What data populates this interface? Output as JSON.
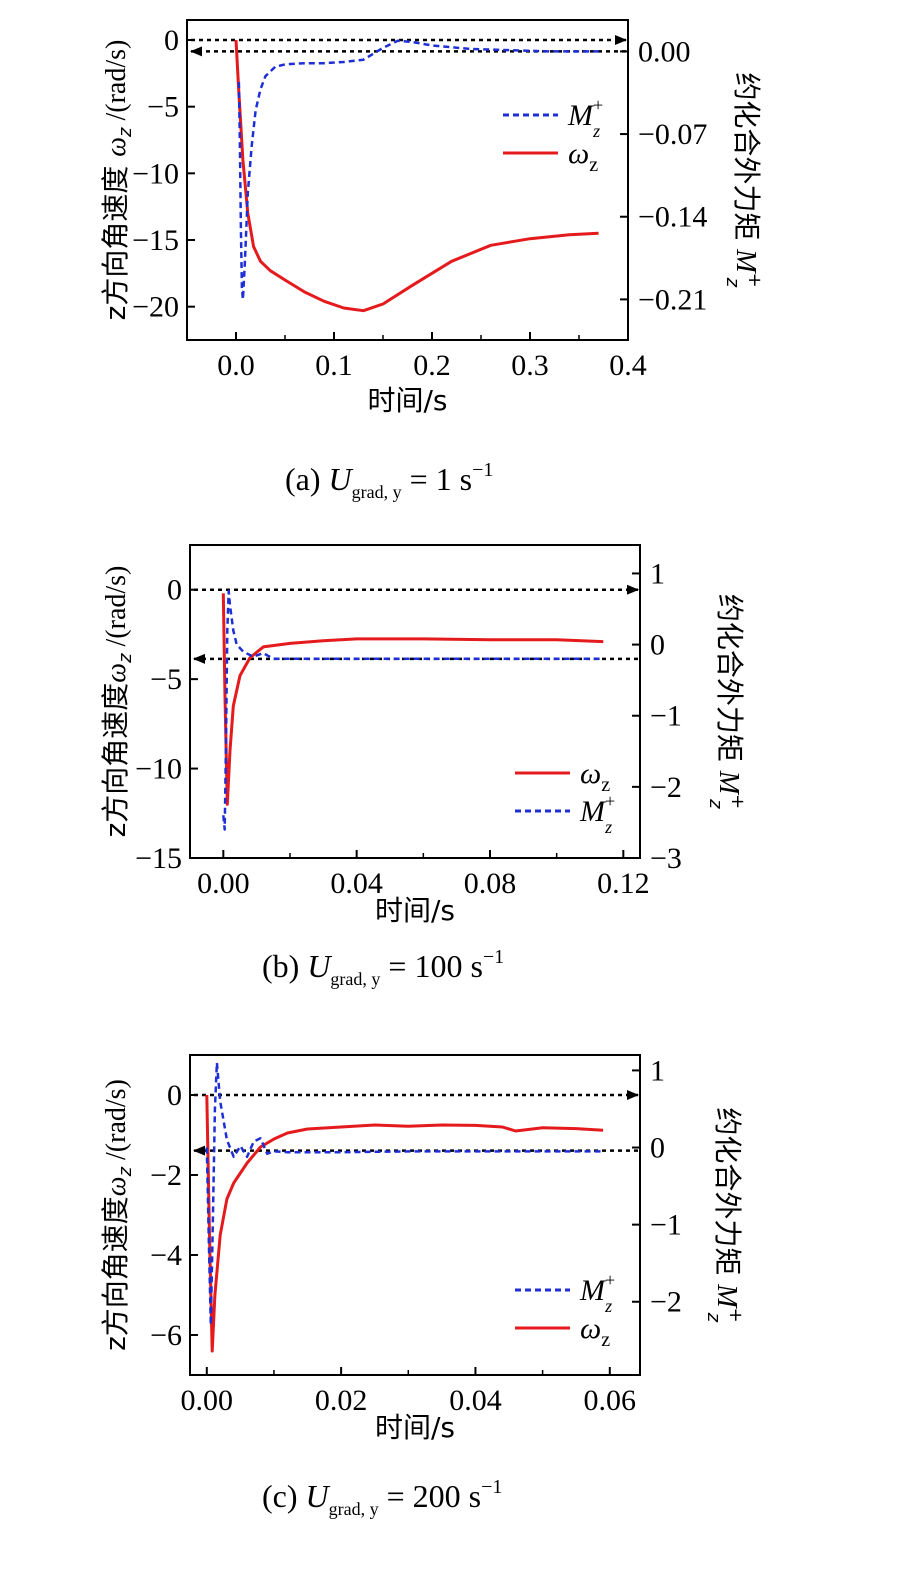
{
  "colors": {
    "omega": "#e41a1c",
    "moment": "#1f2fd6",
    "arrow": "#000000"
  },
  "chart_data": [
    {
      "type": "line",
      "caption": {
        "prefix": "(a)",
        "sub": "grad, y",
        "rhs": "= 1 s",
        "exp": "−1"
      },
      "xlabel": "时间/s",
      "ylabel_left": {
        "pre": "z方向角速度 ",
        "sym": "ω",
        "sub": "z",
        "unit": " /(rad/s)"
      },
      "ylabel_right": {
        "text": "约化合外力矩 ",
        "sym": "M",
        "sup": "+",
        "sub": "z"
      },
      "xlim": [
        -0.05,
        0.4
      ],
      "ylim_left": [
        -22.5,
        1.5
      ],
      "ylim_right": [
        -0.2444,
        0.0266
      ],
      "xticks": [
        0.0,
        0.1,
        0.2,
        0.3,
        0.4
      ],
      "xtick_labels": [
        "0.0",
        "0.1",
        "0.2",
        "0.3",
        "0.4"
      ],
      "yticks_left": [
        0,
        -5,
        -10,
        -15,
        -20
      ],
      "ytick_labels_left": [
        "0",
        "−5",
        "−10",
        "−15",
        "−20"
      ],
      "yticks_right": [
        0.0,
        -0.07,
        -0.14,
        -0.21
      ],
      "ytick_labels_right": [
        "0.00",
        "−0.07",
        "−0.14",
        "−0.21"
      ],
      "legend": {
        "position": "upper-right",
        "order": [
          "moment",
          "omega"
        ]
      },
      "legend_labels": {
        "omega": {
          "sym": "ω",
          "sub": "z"
        },
        "moment": {
          "sym": "M",
          "sup": "+",
          "sub": "z"
        }
      },
      "arrows": [
        {
          "axis": "left",
          "y": 0,
          "direction": "right"
        },
        {
          "axis": "right",
          "y": 0,
          "direction": "left"
        }
      ],
      "series": [
        {
          "name": "ω_z",
          "axis": "left",
          "style": "solid",
          "x": [
            0.0,
            0.003,
            0.007,
            0.012,
            0.018,
            0.025,
            0.035,
            0.05,
            0.07,
            0.09,
            0.11,
            0.13,
            0.15,
            0.18,
            0.22,
            0.26,
            0.3,
            0.34,
            0.37
          ],
          "y": [
            0,
            -4,
            -9,
            -13,
            -15.5,
            -16.6,
            -17.3,
            -18,
            -18.9,
            -19.6,
            -20.1,
            -20.3,
            -19.8,
            -18.4,
            -16.6,
            -15.4,
            -14.9,
            -14.6,
            -14.5
          ]
        },
        {
          "name": "M_z^+",
          "axis": "right",
          "style": "dashed",
          "x": [
            0.003,
            0.004,
            0.005,
            0.006,
            0.007,
            0.009,
            0.012,
            0.016,
            0.02,
            0.025,
            0.03,
            0.04,
            0.05,
            0.07,
            0.09,
            0.11,
            0.13,
            0.15,
            0.165,
            0.18,
            0.2,
            0.24,
            0.28,
            0.32,
            0.37
          ],
          "y": [
            -0.026,
            -0.08,
            -0.15,
            -0.2,
            -0.21,
            -0.18,
            -0.12,
            -0.08,
            -0.05,
            -0.032,
            -0.021,
            -0.013,
            -0.011,
            -0.01,
            -0.01,
            -0.009,
            -0.007,
            0.003,
            0.009,
            0.008,
            0.005,
            0.002,
            0.001,
            0.0,
            0.0
          ]
        }
      ]
    },
    {
      "type": "line",
      "caption": {
        "prefix": "(b)",
        "sub": "grad, y",
        "rhs": "= 100 s",
        "exp": "−1"
      },
      "xlabel": "时间/s",
      "ylabel_left": {
        "pre": "z方向角速度",
        "sym": "ω",
        "sub": "z",
        "unit": " /(rad/s)"
      },
      "ylabel_right": {
        "text": "约化合外力矩 ",
        "sym": "M",
        "sup": "+",
        "sub": "z"
      },
      "xlim": [
        -0.01,
        0.125
      ],
      "ylim_left": [
        -15,
        2.5
      ],
      "ylim_right": [
        -3,
        1.4
      ],
      "xticks": [
        0.0,
        0.04,
        0.08,
        0.12
      ],
      "xtick_labels": [
        "0.00",
        "0.04",
        "0.08",
        "0.12"
      ],
      "yticks_left": [
        0,
        -5,
        -10,
        -15
      ],
      "ytick_labels_left": [
        "0",
        "−5",
        "−10",
        "−15"
      ],
      "yticks_right": [
        1,
        0,
        -1,
        -2,
        -3
      ],
      "ytick_labels_right": [
        "1",
        "0",
        "−1",
        "−2",
        "−3"
      ],
      "legend": {
        "position": "lower-right",
        "order": [
          "omega",
          "moment"
        ]
      },
      "legend_labels": {
        "omega": {
          "sym": "ω",
          "sub": "z"
        },
        "moment": {
          "sym": "M",
          "sup": "+",
          "sub": "z"
        }
      },
      "arrows": [
        {
          "axis": "left",
          "y": 0,
          "direction": "right"
        },
        {
          "axis": "right",
          "y": -0.2,
          "direction": "left"
        }
      ],
      "series": [
        {
          "name": "ω_z",
          "axis": "left",
          "style": "solid",
          "x": [
            0.0,
            0.0005,
            0.0012,
            0.002,
            0.003,
            0.005,
            0.008,
            0.012,
            0.02,
            0.03,
            0.04,
            0.06,
            0.08,
            0.1,
            0.114
          ],
          "y": [
            -0.2,
            -6,
            -12,
            -9,
            -6.5,
            -4.8,
            -3.8,
            -3.2,
            -3,
            -2.85,
            -2.75,
            -2.75,
            -2.8,
            -2.8,
            -2.9
          ]
        },
        {
          "name": "M_z^+",
          "axis": "right",
          "style": "dashed",
          "x": [
            0.0,
            0.0004,
            0.0008,
            0.0012,
            0.0016,
            0.002,
            0.003,
            0.004,
            0.006,
            0.009,
            0.012,
            0.015,
            0.02,
            0.04,
            0.06,
            0.08,
            0.1,
            0.114
          ],
          "y": [
            -2.4,
            -2.6,
            -1.4,
            0.2,
            0.75,
            0.55,
            0.2,
            0.0,
            -0.1,
            -0.17,
            -0.12,
            -0.2,
            -0.2,
            -0.2,
            -0.2,
            -0.2,
            -0.2,
            -0.2
          ]
        }
      ]
    },
    {
      "type": "line",
      "caption": {
        "prefix": "(c)",
        "sub": "grad, y",
        "rhs": "= 200 s",
        "exp": "−1"
      },
      "xlabel": "时间/s",
      "ylabel_left": {
        "pre": "z方向角速度",
        "sym": "ω",
        "sub": "z",
        "unit": " /(rad/s)"
      },
      "ylabel_right": {
        "text": "约化合外力矩 ",
        "sym": "M",
        "sup": "+",
        "sub": "z"
      },
      "xlim": [
        -0.0025,
        0.0645
      ],
      "ylim_left": [
        -7,
        1
      ],
      "ylim_right": [
        -2.95,
        1.2
      ],
      "xticks": [
        0.0,
        0.02,
        0.04,
        0.06
      ],
      "xtick_labels": [
        "0.00",
        "0.02",
        "0.04",
        "0.06"
      ],
      "yticks_left": [
        0,
        -2,
        -4,
        -6
      ],
      "ytick_labels_left": [
        "0",
        "−2",
        "−4",
        "−6"
      ],
      "yticks_right": [
        1,
        0,
        -1,
        -2
      ],
      "ytick_labels_right": [
        "1",
        "0",
        "−1",
        "−2"
      ],
      "legend": {
        "position": "lower-right",
        "order": [
          "moment",
          "omega"
        ]
      },
      "legend_labels": {
        "omega": {
          "sym": "ω",
          "sub": "z"
        },
        "moment": {
          "sym": "M",
          "sup": "+",
          "sub": "z"
        }
      },
      "arrows": [
        {
          "axis": "left",
          "y": 0,
          "direction": "right"
        },
        {
          "axis": "right",
          "y": -0.04,
          "direction": "left"
        }
      ],
      "series": [
        {
          "name": "ω_z",
          "axis": "left",
          "style": "solid",
          "x": [
            0.0,
            0.0004,
            0.0008,
            0.0012,
            0.002,
            0.003,
            0.004,
            0.006,
            0.008,
            0.01,
            0.012,
            0.015,
            0.02,
            0.025,
            0.03,
            0.035,
            0.04,
            0.044,
            0.046,
            0.05,
            0.055,
            0.059
          ],
          "y": [
            0,
            -3.5,
            -6.4,
            -5,
            -3.5,
            -2.6,
            -2.2,
            -1.7,
            -1.3,
            -1.1,
            -0.95,
            -0.85,
            -0.8,
            -0.75,
            -0.78,
            -0.75,
            -0.76,
            -0.8,
            -0.9,
            -0.82,
            -0.84,
            -0.88
          ]
        },
        {
          "name": "M_z^+",
          "axis": "right",
          "style": "dashed",
          "x": [
            0.0,
            0.0003,
            0.0006,
            0.0009,
            0.0012,
            0.0015,
            0.002,
            0.003,
            0.004,
            0.005,
            0.006,
            0.007,
            0.008,
            0.009,
            0.01,
            0.012,
            0.02,
            0.03,
            0.04,
            0.05,
            0.059
          ],
          "y": [
            0.0,
            -1.2,
            -2.3,
            -1.0,
            0.5,
            1.1,
            0.6,
            0.1,
            -0.12,
            0.02,
            -0.12,
            0.08,
            0.12,
            -0.08,
            -0.05,
            -0.06,
            -0.06,
            -0.05,
            -0.05,
            -0.05,
            -0.05
          ]
        }
      ]
    }
  ]
}
